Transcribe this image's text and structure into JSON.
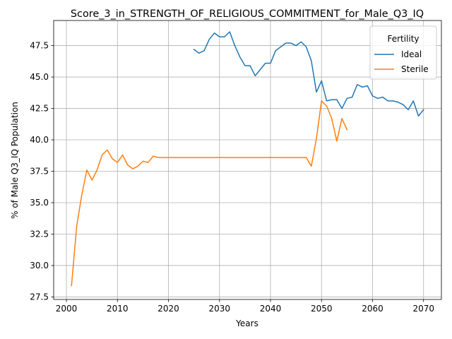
{
  "chart_data": {
    "type": "line",
    "title": "Score_3_in_STRENGTH_OF_RELIGIOUS_COMMITMENT_for_Male_Q3_IQ",
    "xlabel": "Years",
    "ylabel": "% of Male Q3_IQ Population",
    "xlim": [
      1997.5,
      2073.5
    ],
    "ylim": [
      27.3,
      49.5
    ],
    "xticks": [
      2000,
      2010,
      2020,
      2030,
      2040,
      2050,
      2060,
      2070
    ],
    "yticks": [
      27.5,
      30.0,
      32.5,
      35.0,
      37.5,
      40.0,
      42.5,
      45.0,
      47.5
    ],
    "xtick_labels": [
      "2000",
      "2010",
      "2020",
      "2030",
      "2040",
      "2050",
      "2060",
      "2070"
    ],
    "ytick_labels": [
      "27.5",
      "30.0",
      "32.5",
      "35.0",
      "37.5",
      "40.0",
      "42.5",
      "45.0",
      "47.5"
    ],
    "grid": true,
    "legend": {
      "title": "Fertility",
      "placement": "top-right"
    },
    "series": [
      {
        "name": "Ideal",
        "color": "#1f77b4",
        "x": [
          2025,
          2026,
          2027,
          2028,
          2029,
          2030,
          2031,
          2032,
          2033,
          2034,
          2035,
          2036,
          2037,
          2038,
          2039,
          2040,
          2041,
          2042,
          2043,
          2044,
          2045,
          2046,
          2047,
          2048,
          2049,
          2050,
          2051,
          2052,
          2053,
          2054,
          2055,
          2056,
          2057,
          2058,
          2059,
          2060,
          2061,
          2062,
          2063,
          2064,
          2065,
          2066,
          2067,
          2068,
          2069,
          2070
        ],
        "y": [
          47.2,
          46.9,
          47.1,
          48.0,
          48.5,
          48.2,
          48.2,
          48.6,
          47.5,
          46.6,
          45.9,
          45.9,
          45.1,
          45.6,
          46.1,
          46.1,
          47.1,
          47.4,
          47.7,
          47.7,
          47.5,
          47.8,
          47.4,
          46.3,
          43.8,
          44.7,
          43.1,
          43.2,
          43.2,
          42.5,
          43.3,
          43.4,
          44.4,
          44.2,
          44.3,
          43.5,
          43.3,
          43.4,
          43.1,
          43.1,
          43.0,
          42.8,
          42.4,
          43.1,
          41.9,
          42.4
        ]
      },
      {
        "name": "Sterile",
        "color": "#ff7f0e",
        "x": [
          2001,
          2002,
          2003,
          2004,
          2005,
          2006,
          2007,
          2008,
          2009,
          2010,
          2011,
          2012,
          2013,
          2014,
          2015,
          2016,
          2017,
          2018,
          2019,
          2020,
          2021,
          2022,
          2023,
          2024,
          2025,
          2026,
          2027,
          2028,
          2029,
          2030,
          2031,
          2032,
          2033,
          2034,
          2035,
          2036,
          2037,
          2038,
          2039,
          2040,
          2041,
          2042,
          2043,
          2044,
          2045,
          2046,
          2047,
          2048,
          2049,
          2050,
          2051,
          2052,
          2053,
          2054,
          2055
        ],
        "y": [
          28.4,
          33.1,
          35.6,
          37.6,
          36.8,
          37.6,
          38.8,
          39.2,
          38.5,
          38.2,
          38.8,
          38.0,
          37.7,
          37.9,
          38.3,
          38.2,
          38.7,
          38.6,
          38.6,
          38.6,
          38.6,
          38.6,
          38.6,
          38.6,
          38.6,
          38.6,
          38.6,
          38.6,
          38.6,
          38.6,
          38.6,
          38.6,
          38.6,
          38.6,
          38.6,
          38.6,
          38.6,
          38.6,
          38.6,
          38.6,
          38.6,
          38.6,
          38.6,
          38.6,
          38.6,
          38.6,
          38.6,
          37.9,
          40.1,
          43.1,
          42.7,
          41.7,
          39.9,
          41.7,
          40.8
        ]
      }
    ]
  }
}
